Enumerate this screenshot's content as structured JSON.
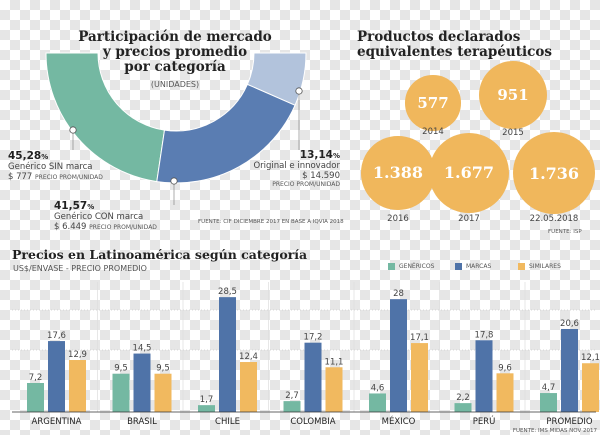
{
  "colors": {
    "genericos": "#74b8a2",
    "marcas": "#4f73a8",
    "similares": "#f1b95f",
    "original": "#b2c3dc",
    "bubble": "#f0b75c"
  },
  "market": {
    "title_lines": [
      "Participación de mercado",
      "y precios promedio",
      "por categoría"
    ],
    "subtitle": "(UNIDADES)",
    "segments": [
      {
        "pct": 45.28,
        "pct_label": "45,28",
        "name": "Genérico SIN marca",
        "price": "$ 777",
        "price_note": "PRECIO PROM/UNIDAD",
        "color": "#74b8a2"
      },
      {
        "pct": 41.57,
        "pct_label": "41,57",
        "name": "Genérico CON marca",
        "price": "$ 6.449",
        "price_note": "PRECIO PROM/UNIDAD",
        "color": "#5a7db2"
      },
      {
        "pct": 13.14,
        "pct_label": "13,14",
        "name": "Original e innovador",
        "price": "$ 14.590",
        "price_note": "PRECIO PROM/UNIDAD",
        "color": "#b2c3dc"
      }
    ],
    "pct_sign": "%",
    "source": "FUENTE: CIF DICIEMBRE 2017 EN BASE A IQVIA 2018"
  },
  "products": {
    "title_lines": [
      "Productos declarados",
      "equivalentes terapéuticos"
    ],
    "items": [
      {
        "value": 577,
        "label": "577",
        "year": "2014"
      },
      {
        "value": 951,
        "label": "951",
        "year": "2015"
      },
      {
        "value": 1388,
        "label": "1.388",
        "year": "2016"
      },
      {
        "value": 1677,
        "label": "1.677",
        "year": "2017"
      },
      {
        "value": 1736,
        "label": "1.736",
        "year": "22.05.2018"
      }
    ],
    "source": "FUENTE: ISP"
  },
  "chart_data": {
    "type": "bar",
    "title": "Precios en Latinoamérica según categoría",
    "subtitle": "US$/ENVASE - PRECIO PROMEDIO",
    "legend_position": "top-right",
    "categories": [
      "ARGENTINA",
      "BRASIL",
      "CHILE",
      "COLOMBIA",
      "MÉXICO",
      "PERÚ",
      "PROMEDIO"
    ],
    "series": [
      {
        "name": "GENÉRICOS",
        "color": "#74b8a2",
        "values": [
          7.2,
          9.5,
          1.7,
          2.7,
          4.6,
          2.2,
          4.7
        ],
        "labels": [
          "7,2",
          "9,5",
          "1,7",
          "2,7",
          "4,6",
          "2,2",
          "4,7"
        ]
      },
      {
        "name": "MARCAS",
        "color": "#4f73a8",
        "values": [
          17.6,
          14.5,
          28.5,
          17.2,
          28,
          17.8,
          20.6
        ],
        "labels": [
          "17,6",
          "14,5",
          "28,5",
          "17,2",
          "28",
          "17,8",
          "20,6"
        ]
      },
      {
        "name": "SIMILARES",
        "color": "#f1b95f",
        "values": [
          12.9,
          9.5,
          12.4,
          11.1,
          17.1,
          9.6,
          12.1
        ],
        "labels": [
          "12,9",
          "9,5",
          "12,4",
          "11,1",
          "17,1",
          "9,6",
          "12,1"
        ]
      }
    ],
    "ylim": [
      0,
      30
    ],
    "source": "FUENTE: IMS MIDAS NOV 2017"
  }
}
